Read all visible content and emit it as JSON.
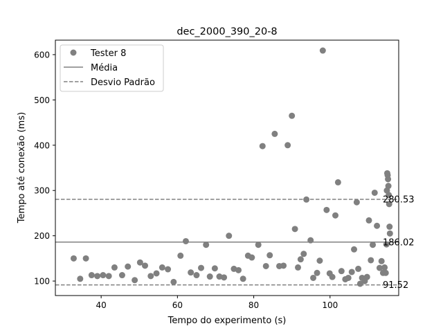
{
  "chart_data": {
    "type": "scatter",
    "title": "dec_2000_390_20-8",
    "xlabel": "Tempo do experimento (s)",
    "ylabel": "Tempo até conexão (ms)",
    "xlim": [
      28,
      118
    ],
    "ylim": [
      68,
      632
    ],
    "xticks": [
      40,
      60,
      80,
      100
    ],
    "yticks": [
      100,
      200,
      300,
      400,
      500,
      600
    ],
    "grid": false,
    "legend_position": "top-left",
    "legend": [
      {
        "label": "Tester 8",
        "kind": "marker"
      },
      {
        "label": "Média",
        "kind": "solid-line"
      },
      {
        "label": "Desvio Padrão",
        "kind": "dashed-line"
      }
    ],
    "mean": 186.02,
    "upper_std": 280.53,
    "lower_std": 91.52,
    "mean_label": "186.02",
    "upper_label": "280.53",
    "lower_label": "91.52",
    "colors": {
      "points": "#808080",
      "lines": "#808080"
    },
    "series": [
      {
        "name": "Tester 8",
        "x": [
          32.8,
          34.5,
          36.0,
          37.5,
          39.0,
          40.5,
          42.0,
          43.5,
          45.5,
          47.0,
          48.8,
          50.2,
          51.5,
          53.0,
          54.5,
          56.0,
          57.5,
          59.0,
          60.8,
          62.2,
          63.5,
          65.0,
          66.2,
          67.5,
          68.5,
          69.8,
          71.0,
          72.2,
          73.5,
          74.8,
          76.0,
          77.2,
          78.5,
          79.5,
          81.2,
          82.3,
          83.2,
          84.2,
          85.5,
          86.7,
          87.8,
          88.9,
          90.0,
          90.8,
          91.6,
          92.3,
          93.1,
          93.8,
          94.9,
          95.6,
          96.6,
          97.3,
          98.1,
          99.1,
          99.9,
          100.6,
          101.4,
          102.1,
          103.0,
          104.0,
          104.8,
          105.7,
          106.3,
          107.0,
          107.4,
          107.9,
          108.4,
          109.1,
          109.7,
          110.2,
          110.7,
          111.2,
          111.7,
          112.3,
          113.0,
          113.5,
          113.9,
          114.3,
          114.6,
          114.8,
          114.9,
          115.0,
          115.1,
          115.2,
          115.3,
          115.4,
          115.5,
          115.6,
          115.7
        ],
        "y": [
          150,
          105,
          150,
          113,
          111,
          113,
          111,
          130,
          113,
          132,
          102,
          141,
          134,
          111,
          117,
          130,
          126,
          98,
          156,
          188,
          119,
          113,
          129,
          180,
          110,
          128,
          110,
          108,
          200,
          127,
          124,
          105,
          156,
          152,
          180,
          398,
          133,
          157,
          425,
          133,
          134,
          400,
          465,
          215,
          130,
          148,
          160,
          280,
          190,
          107,
          118,
          145,
          609,
          257,
          117,
          109,
          245,
          318,
          122,
          104,
          107,
          120,
          170,
          274,
          127,
          94,
          107,
          100,
          109,
          234,
          146,
          180,
          295,
          222,
          129,
          144,
          118,
          130,
          118,
          181,
          300,
          338,
          334,
          325,
          310,
          290,
          270,
          220,
          205
        ]
      }
    ]
  }
}
